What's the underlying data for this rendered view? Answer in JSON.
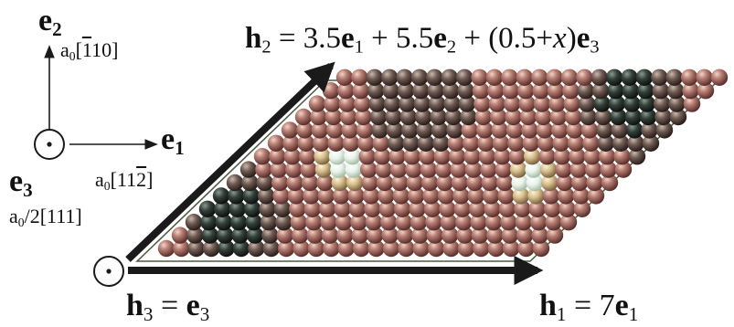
{
  "axes": {
    "e1": {
      "base": "e",
      "sub": "1",
      "miller": "a",
      "miller_sub": "0",
      "miller_index_pre": "[11",
      "miller_index_bar": "2",
      "miller_index_post": "]"
    },
    "e2": {
      "base": "e",
      "sub": "2",
      "miller": "a",
      "miller_sub": "0",
      "miller_index_pre": "[",
      "miller_index_bar": "1",
      "miller_index_post": "10]"
    },
    "e3": {
      "base": "e",
      "sub": "3",
      "miller": "a",
      "miller_sub": "0",
      "miller_index_pre": "/2[111]"
    }
  },
  "vectors": {
    "h1": {
      "lhs": "h",
      "lhs_sub": "1",
      "eq": " = 7",
      "rhs": "e",
      "rhs_sub": "1"
    },
    "h2": {
      "lhs": "h",
      "lhs_sub": "2",
      "eq": " = 3.5",
      "t1": "e",
      "t1_sub": "1",
      "plus1": " + 5.5",
      "t2": "e",
      "t2_sub": "2",
      "plus2": " + (0.5+",
      "x": "x",
      "close": ")",
      "t3": "e",
      "t3_sub": "3"
    },
    "h3": {
      "lhs": "h",
      "lhs_sub": "3",
      "eq": " = ",
      "rhs": "e",
      "rhs_sub": "3"
    }
  },
  "colors": {
    "atom_base": "#b07a70",
    "atom_dark": "#1a2520",
    "atom_light": "#f4fbf6",
    "arrow": "#1a1a1a",
    "cell_outline": "#4a5a40"
  },
  "cell": {
    "rows": 14,
    "cols": 26
  }
}
